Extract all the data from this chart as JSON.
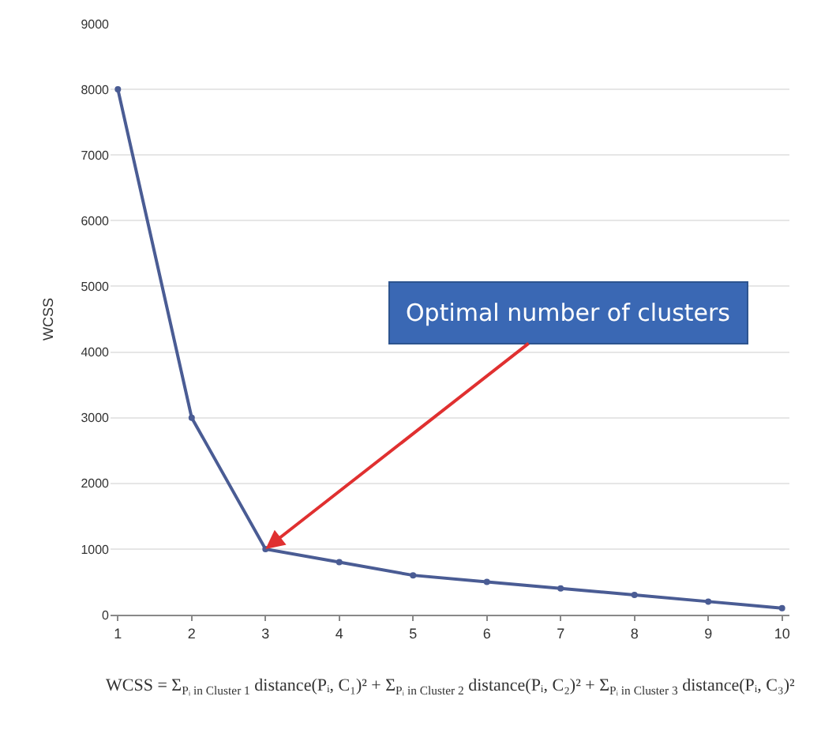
{
  "chart_data": {
    "type": "line",
    "ylabel": "WCSS",
    "x": [
      1,
      2,
      3,
      4,
      5,
      6,
      7,
      8,
      9,
      10
    ],
    "series": [
      {
        "color": "#4a5c94",
        "values": [
          8000,
          3000,
          1000,
          800,
          600,
          500,
          400,
          300,
          200,
          100
        ]
      }
    ],
    "xlim": [
      0.9,
      10.1
    ],
    "xticks": [
      1,
      2,
      3,
      4,
      5,
      6,
      7,
      8,
      9,
      10
    ],
    "ylim": [
      0,
      9000
    ],
    "yticks": [
      0,
      1000,
      2000,
      3000,
      4000,
      5000,
      6000,
      7000,
      8000,
      9000
    ],
    "grid": "y",
    "marker": "circle",
    "line_style": "solid",
    "annotations": [
      {
        "text": "Optimal number of clusters",
        "x": 3,
        "y": 1000
      },
      "WCSS = Σ$_{Pᵢ in Cluster 1}$ distance(Pᵢ, C₁)² + Σ$_{Pᵢ in Cluster 2}$ distance(Pᵢ, C₂)² + Σ$_{Pᵢ in Cluster 3}$ distance(Pᵢ, C₃)²"
    ]
  }
}
